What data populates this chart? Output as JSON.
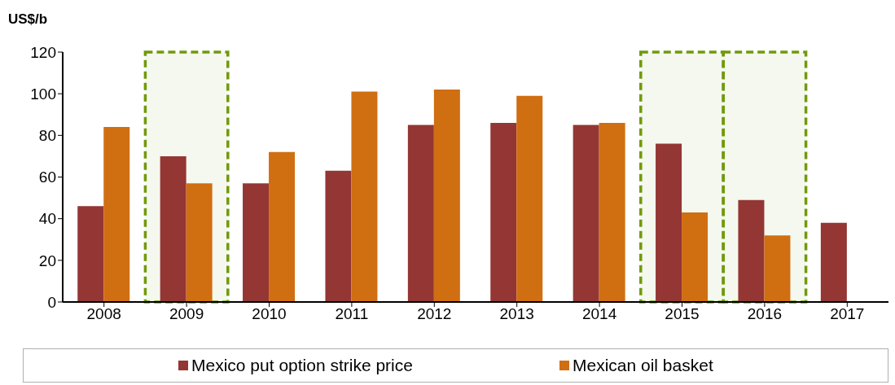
{
  "chart_data": {
    "type": "bar",
    "ylabel": "US$/b",
    "categories": [
      "2008",
      "2009",
      "2010",
      "2011",
      "2012",
      "2013",
      "2014",
      "2015",
      "2016",
      "2017"
    ],
    "series": [
      {
        "name": "Mexico put option strike price",
        "color": "#943634",
        "values": [
          46,
          70,
          57,
          63,
          85,
          86,
          85,
          76,
          49,
          38
        ]
      },
      {
        "name": "Mexican oil basket",
        "color": "#d06e12",
        "values": [
          84,
          57,
          72,
          101,
          102,
          99,
          86,
          43,
          32,
          null
        ]
      }
    ],
    "ylim": [
      0,
      120
    ],
    "yticks": [
      0,
      20,
      40,
      60,
      80,
      100,
      120
    ],
    "legend": "bottom",
    "bands": [
      {
        "axis": "x",
        "from": "2009",
        "to": "2009",
        "color": "#6f9a0a"
      },
      {
        "axis": "x",
        "from": "2015",
        "to": "2015",
        "color": "#6f9a0a"
      },
      {
        "axis": "x",
        "from": "2016",
        "to": "2016",
        "color": "#6f9a0a"
      }
    ]
  }
}
